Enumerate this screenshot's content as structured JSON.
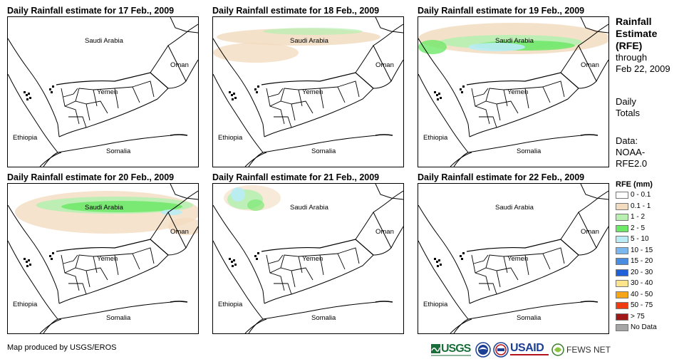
{
  "panels": [
    {
      "title": "Daily Rainfall estimate for 17 Feb., 2009"
    },
    {
      "title": "Daily Rainfall estimate for 18 Feb., 2009"
    },
    {
      "title": "Daily Rainfall estimate for 19 Feb., 2009"
    },
    {
      "title": "Daily Rainfall estimate for 20 Feb., 2009"
    },
    {
      "title": "Daily Rainfall estimate for 21 Feb., 2009"
    },
    {
      "title": "Daily Rainfall estimate for 22 Feb., 2009"
    }
  ],
  "map_labels": {
    "saudi": "Saudi Arabia",
    "oman": "Oman",
    "yemen": "Yemen",
    "ethiopia": "Ethiopia",
    "somalia": "Somalia"
  },
  "side": {
    "line1": "Rainfall",
    "line2": "Estimate",
    "line3": "(RFE)",
    "line4": "through",
    "line5": "Feb 22, 2009",
    "daily1": "Daily",
    "daily2": "Totals",
    "data1": "Data:",
    "data2": "NOAA-",
    "data3": "RFE2.0"
  },
  "legend": {
    "title": "RFE (mm)",
    "items": [
      {
        "label": "0 - 0.1",
        "color": "#ffffff"
      },
      {
        "label": "0.1 - 1",
        "color": "#f2dcc0"
      },
      {
        "label": "1 - 2",
        "color": "#b7f0b1"
      },
      {
        "label": "2 - 5",
        "color": "#6ee868"
      },
      {
        "label": "5 - 10",
        "color": "#b9ecf5"
      },
      {
        "label": "10 - 15",
        "color": "#7cb8ee"
      },
      {
        "label": "15 - 20",
        "color": "#4a8de0"
      },
      {
        "label": "20 - 30",
        "color": "#2060d8"
      },
      {
        "label": "30 - 40",
        "color": "#fde38a"
      },
      {
        "label": "40 - 50",
        "color": "#f5a515"
      },
      {
        "label": "50 - 75",
        "color": "#f03b10"
      },
      {
        "label": "> 75",
        "color": "#a11818"
      },
      {
        "label": "No Data",
        "color": "#a6a6a6"
      }
    ]
  },
  "footer": "Map produced by USGS/EROS",
  "logos": {
    "usgs": "USGS",
    "usaid": "USAID",
    "fewsnet": "FEWS NET"
  }
}
